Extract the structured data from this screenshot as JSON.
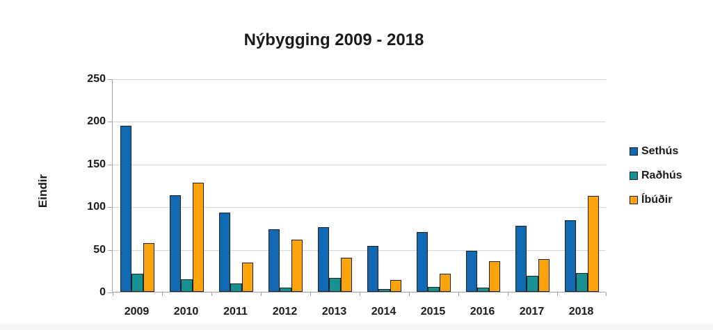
{
  "chart_data": {
    "type": "bar",
    "title": "Nýbygging 2009 - 2018",
    "ylabel": "Eindir",
    "xlabel": "",
    "categories": [
      "2009",
      "2010",
      "2011",
      "2012",
      "2013",
      "2014",
      "2015",
      "2016",
      "2017",
      "2018"
    ],
    "series": [
      {
        "name": "Sethús",
        "color": "#1169B4",
        "values": [
          195,
          113,
          93,
          73,
          76,
          54,
          70,
          48,
          77,
          84
        ]
      },
      {
        "name": "Raðhús",
        "color": "#189193",
        "values": [
          21,
          15,
          10,
          5,
          16,
          3,
          6,
          5,
          19,
          22
        ]
      },
      {
        "name": "Íbúðir",
        "color": "#FCA40E",
        "values": [
          57,
          128,
          34,
          61,
          40,
          14,
          21,
          36,
          38,
          112
        ]
      }
    ],
    "ylim": [
      0,
      250
    ],
    "yticks": [
      0,
      50,
      100,
      150,
      200,
      250
    ],
    "grid": true,
    "legend_position": "right"
  },
  "colors": {
    "bar_border": "#1F1F1F",
    "gridline": "#D6D6D6",
    "axis": "#9E9E9E",
    "text": "#1A1A1A",
    "background": "#FFFFFF"
  }
}
